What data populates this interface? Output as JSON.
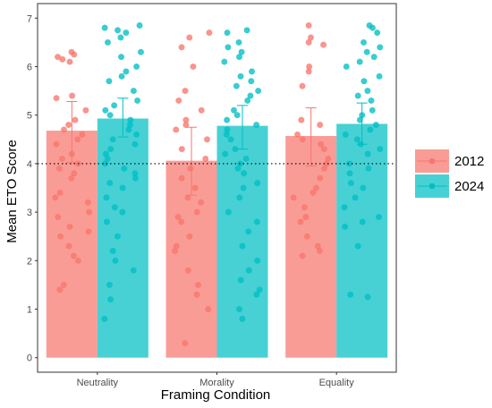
{
  "chart_data": {
    "type": "bar",
    "xlabel": "Framing Condition",
    "ylabel": "Mean ETO Score",
    "ylim": [
      -0.3,
      7.3
    ],
    "yticks": [
      0,
      1,
      2,
      3,
      4,
      5,
      6,
      7
    ],
    "categories": [
      "Neutrality",
      "Morality",
      "Equality"
    ],
    "reference_line": 4,
    "grid": false,
    "legend_position": "right",
    "series": [
      {
        "name": "2012",
        "color": "#F8766D",
        "values": [
          4.68,
          4.06,
          4.57
        ],
        "errors": [
          [
            4.02,
            5.28
          ],
          [
            3.35,
            4.75
          ],
          [
            3.95,
            5.15
          ]
        ],
        "points": [
          [
            6.3,
            6.25,
            6.2,
            6.15,
            6.1,
            5.4,
            5.35,
            5.1,
            4.9,
            4.8,
            4.7,
            4.6,
            4.5,
            4.4,
            4.2,
            4.1,
            4.0,
            3.9,
            3.8,
            3.7,
            3.4,
            3.3,
            3.2,
            3.0,
            2.9,
            2.7,
            2.6,
            2.5,
            2.3,
            2.1,
            2.0,
            1.5,
            1.4
          ],
          [
            6.7,
            6.6,
            6.4,
            6.0,
            5.5,
            5.3,
            5.1,
            4.9,
            4.8,
            4.7,
            4.5,
            4.3,
            4.1,
            3.9,
            3.7,
            3.5,
            3.3,
            3.2,
            3.0,
            2.9,
            2.8,
            2.5,
            2.3,
            2.2,
            1.8,
            1.5,
            1.3,
            1.0,
            0.3
          ],
          [
            6.85,
            6.6,
            6.5,
            6.45,
            6.0,
            5.9,
            5.6,
            4.9,
            4.8,
            4.6,
            4.5,
            4.4,
            4.3,
            4.1,
            4.0,
            3.9,
            3.7,
            3.5,
            3.4,
            3.3,
            3.1,
            2.9,
            2.8,
            2.5,
            2.3,
            2.2,
            2.1
          ]
        ]
      },
      {
        "name": "2024",
        "color": "#00BFC4",
        "values": [
          4.93,
          4.78,
          4.82
        ],
        "errors": [
          [
            4.55,
            5.35
          ],
          [
            4.3,
            5.2
          ],
          [
            4.4,
            5.25
          ]
        ],
        "points": [
          [
            6.85,
            6.8,
            6.75,
            6.7,
            6.6,
            6.5,
            6.3,
            6.2,
            6.0,
            5.9,
            5.8,
            5.7,
            5.5,
            5.3,
            5.2,
            5.1,
            5.0,
            4.9,
            4.8,
            4.7,
            4.6,
            4.5,
            4.4,
            4.3,
            4.2,
            4.1,
            4.0,
            3.9,
            3.8,
            3.7,
            3.6,
            3.5,
            3.3,
            3.1,
            3.0,
            2.8,
            2.5,
            2.2,
            2.0,
            1.8,
            1.5,
            1.2,
            0.8
          ],
          [
            6.75,
            6.7,
            6.5,
            6.4,
            6.3,
            6.2,
            6.1,
            5.9,
            5.8,
            5.7,
            5.6,
            5.5,
            5.4,
            5.3,
            5.1,
            5.0,
            4.9,
            4.8,
            4.7,
            4.6,
            4.5,
            4.3,
            4.2,
            4.1,
            4.0,
            3.9,
            3.8,
            3.6,
            3.5,
            3.3,
            3.0,
            2.8,
            2.6,
            2.3,
            2.0,
            1.8,
            1.6,
            1.4,
            1.3,
            1.0,
            0.8
          ],
          [
            6.85,
            6.8,
            6.7,
            6.5,
            6.4,
            6.3,
            6.2,
            6.1,
            6.0,
            5.8,
            5.7,
            5.5,
            5.4,
            5.3,
            5.1,
            5.0,
            4.9,
            4.8,
            4.7,
            4.6,
            4.5,
            4.4,
            4.3,
            4.2,
            4.0,
            3.9,
            3.8,
            3.6,
            3.5,
            3.3,
            3.1,
            2.9,
            2.8,
            2.7,
            2.3,
            1.3,
            1.25
          ]
        ]
      }
    ]
  }
}
